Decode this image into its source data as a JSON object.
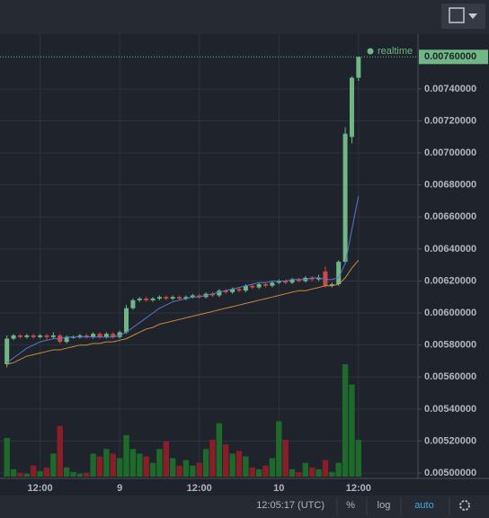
{
  "chart_data": {
    "type": "candlestick",
    "categories": [
      null,
      null,
      null,
      null,
      null,
      "12:00",
      null,
      null,
      null,
      null,
      null,
      null,
      null,
      null,
      null,
      null,
      null,
      "9",
      null,
      null,
      null,
      null,
      null,
      null,
      null,
      null,
      null,
      null,
      null,
      "12:00",
      null,
      null,
      null,
      null,
      null,
      null,
      null,
      null,
      null,
      null,
      null,
      "10",
      null,
      null,
      null,
      null,
      null,
      null,
      null,
      null,
      null,
      null,
      null,
      "12:00"
    ],
    "open": [
      0.00568,
      0.00584,
      0.00586,
      0.00585,
      0.00586,
      0.00585,
      0.00586,
      0.00585,
      0.00586,
      0.00582,
      0.00585,
      0.00585,
      0.00586,
      0.00585,
      0.00587,
      0.00585,
      0.00587,
      0.00585,
      0.00588,
      0.00603,
      0.00608,
      0.00609,
      0.00608,
      0.00609,
      0.0061,
      0.00609,
      0.0061,
      0.00609,
      0.0061,
      0.00611,
      0.0061,
      0.00612,
      0.00611,
      0.00614,
      0.00613,
      0.00615,
      0.00614,
      0.00617,
      0.00616,
      0.00618,
      0.00617,
      0.00619,
      0.0062,
      0.00619,
      0.00621,
      0.0062,
      0.00622,
      0.00621,
      0.00626,
      0.00617,
      0.00618,
      0.00632,
      0.0071,
      0.00747
    ],
    "high": [
      0.00586,
      0.00587,
      0.00587,
      0.00587,
      0.00587,
      0.00587,
      0.00587,
      0.00588,
      0.00587,
      0.00586,
      0.00586,
      0.00587,
      0.00587,
      0.00588,
      0.00588,
      0.00588,
      0.00588,
      0.00589,
      0.00605,
      0.00609,
      0.0061,
      0.0061,
      0.0061,
      0.00611,
      0.00611,
      0.00611,
      0.00611,
      0.00611,
      0.00612,
      0.00612,
      0.00613,
      0.00613,
      0.00615,
      0.00615,
      0.00616,
      0.00616,
      0.00618,
      0.00618,
      0.00619,
      0.00619,
      0.0062,
      0.00621,
      0.00621,
      0.00622,
      0.00622,
      0.00623,
      0.00623,
      0.00624,
      0.00629,
      0.00619,
      0.00633,
      0.00716,
      0.00748,
      0.0076
    ],
    "low": [
      0.00566,
      0.00583,
      0.00584,
      0.00584,
      0.00584,
      0.00584,
      0.00583,
      0.00584,
      0.00581,
      0.00581,
      0.00584,
      0.00584,
      0.00584,
      0.00584,
      0.00584,
      0.00584,
      0.00584,
      0.00584,
      0.00587,
      0.00602,
      0.00607,
      0.00607,
      0.00607,
      0.00608,
      0.00608,
      0.00608,
      0.00608,
      0.00608,
      0.00609,
      0.00609,
      0.00609,
      0.0061,
      0.0061,
      0.00612,
      0.00612,
      0.00613,
      0.00613,
      0.00615,
      0.00615,
      0.00616,
      0.00616,
      0.00618,
      0.00618,
      0.00618,
      0.00619,
      0.00619,
      0.0062,
      0.0062,
      0.00616,
      0.00616,
      0.00617,
      0.00631,
      0.00706,
      0.00745
    ],
    "close": [
      0.00584,
      0.00586,
      0.00585,
      0.00586,
      0.00585,
      0.00586,
      0.00585,
      0.00586,
      0.00582,
      0.00585,
      0.00585,
      0.00586,
      0.00585,
      0.00587,
      0.00585,
      0.00587,
      0.00585,
      0.00588,
      0.00603,
      0.00608,
      0.00609,
      0.00608,
      0.00609,
      0.0061,
      0.00609,
      0.0061,
      0.00609,
      0.0061,
      0.00611,
      0.0061,
      0.00612,
      0.00611,
      0.00614,
      0.00613,
      0.00615,
      0.00614,
      0.00617,
      0.00616,
      0.00618,
      0.00617,
      0.00619,
      0.0062,
      0.00619,
      0.00621,
      0.0062,
      0.00622,
      0.00621,
      0.00622,
      0.00617,
      0.00618,
      0.00632,
      0.00712,
      0.00747,
      0.0076
    ],
    "volume": [
      42,
      8,
      4,
      3,
      12,
      6,
      10,
      25,
      55,
      10,
      5,
      3,
      4,
      25,
      22,
      30,
      25,
      20,
      45,
      30,
      25,
      22,
      15,
      30,
      38,
      20,
      12,
      18,
      12,
      15,
      30,
      40,
      58,
      35,
      25,
      28,
      22,
      10,
      8,
      12,
      20,
      60,
      40,
      8,
      5,
      15,
      10,
      8,
      18,
      5,
      15,
      122,
      100,
      40
    ],
    "series": [
      {
        "color": "#5b77c9",
        "values": [
          0.00569,
          0.00572,
          0.00575,
          0.00578,
          0.0058,
          0.00582,
          0.00583,
          0.00584,
          0.00584,
          0.00585,
          0.00585,
          0.00585,
          0.00585,
          0.00585,
          0.00585,
          0.00585,
          0.00585,
          0.00586,
          0.00588,
          0.00591,
          0.00594,
          0.00597,
          0.006,
          0.00603,
          0.00605,
          0.00607,
          0.00608,
          0.00609,
          0.0061,
          0.0061,
          0.00611,
          0.00612,
          0.00613,
          0.00614,
          0.00615,
          0.00616,
          0.00617,
          0.00618,
          0.00619,
          0.00619,
          0.0062,
          0.0062,
          0.0062,
          0.00621,
          0.00621,
          0.00621,
          0.00622,
          0.00622,
          0.00621,
          0.00621,
          0.00622,
          0.00631,
          0.00652,
          0.00673
        ]
      },
      {
        "color": "#c98a3a",
        "values": [
          0.00568,
          0.00569,
          0.00571,
          0.00573,
          0.00574,
          0.00575,
          0.00576,
          0.00577,
          0.00577,
          0.00578,
          0.00579,
          0.0058,
          0.0058,
          0.00581,
          0.00581,
          0.00582,
          0.00582,
          0.00583,
          0.00584,
          0.00586,
          0.00588,
          0.0059,
          0.00591,
          0.00593,
          0.00594,
          0.00595,
          0.00596,
          0.00597,
          0.00598,
          0.00599,
          0.006,
          0.00601,
          0.00602,
          0.00603,
          0.00604,
          0.00605,
          0.00606,
          0.00607,
          0.00608,
          0.00609,
          0.0061,
          0.00611,
          0.00612,
          0.00613,
          0.00614,
          0.00614,
          0.00615,
          0.00616,
          0.00617,
          0.00617,
          0.00618,
          0.00622,
          0.00628,
          0.00633
        ]
      }
    ],
    "up_color": "#6fb886",
    "down_color": "#d04848",
    "volume_up_color": "#1e6a2b",
    "volume_down_color": "#8a1e28",
    "ylim": [
      0.004978,
      0.007742
    ],
    "yticks": [
      {
        "value": 0.005,
        "label": "0.00500000"
      },
      {
        "value": 0.0052,
        "label": "0.00520000"
      },
      {
        "value": 0.0054,
        "label": "0.00540000"
      },
      {
        "value": 0.0056,
        "label": "0.00560000"
      },
      {
        "value": 0.0058,
        "label": "0.00580000"
      },
      {
        "value": 0.006,
        "label": "0.00600000"
      },
      {
        "value": 0.0062,
        "label": "0.00620000"
      },
      {
        "value": 0.0064,
        "label": "0.00640000"
      },
      {
        "value": 0.0066,
        "label": "0.00660000"
      },
      {
        "value": 0.0068,
        "label": "0.00680000"
      },
      {
        "value": 0.007,
        "label": "0.00700000"
      },
      {
        "value": 0.0072,
        "label": "0.00720000"
      },
      {
        "value": 0.0074,
        "label": "0.00740000"
      }
    ],
    "last_price": {
      "value": 0.0076,
      "label": "0.00760000"
    },
    "realtime_label": "realtime",
    "grid": true
  },
  "status_bar": {
    "time": "12:05:17 (UTC)",
    "buttons": [
      "%",
      "log",
      "auto"
    ]
  }
}
